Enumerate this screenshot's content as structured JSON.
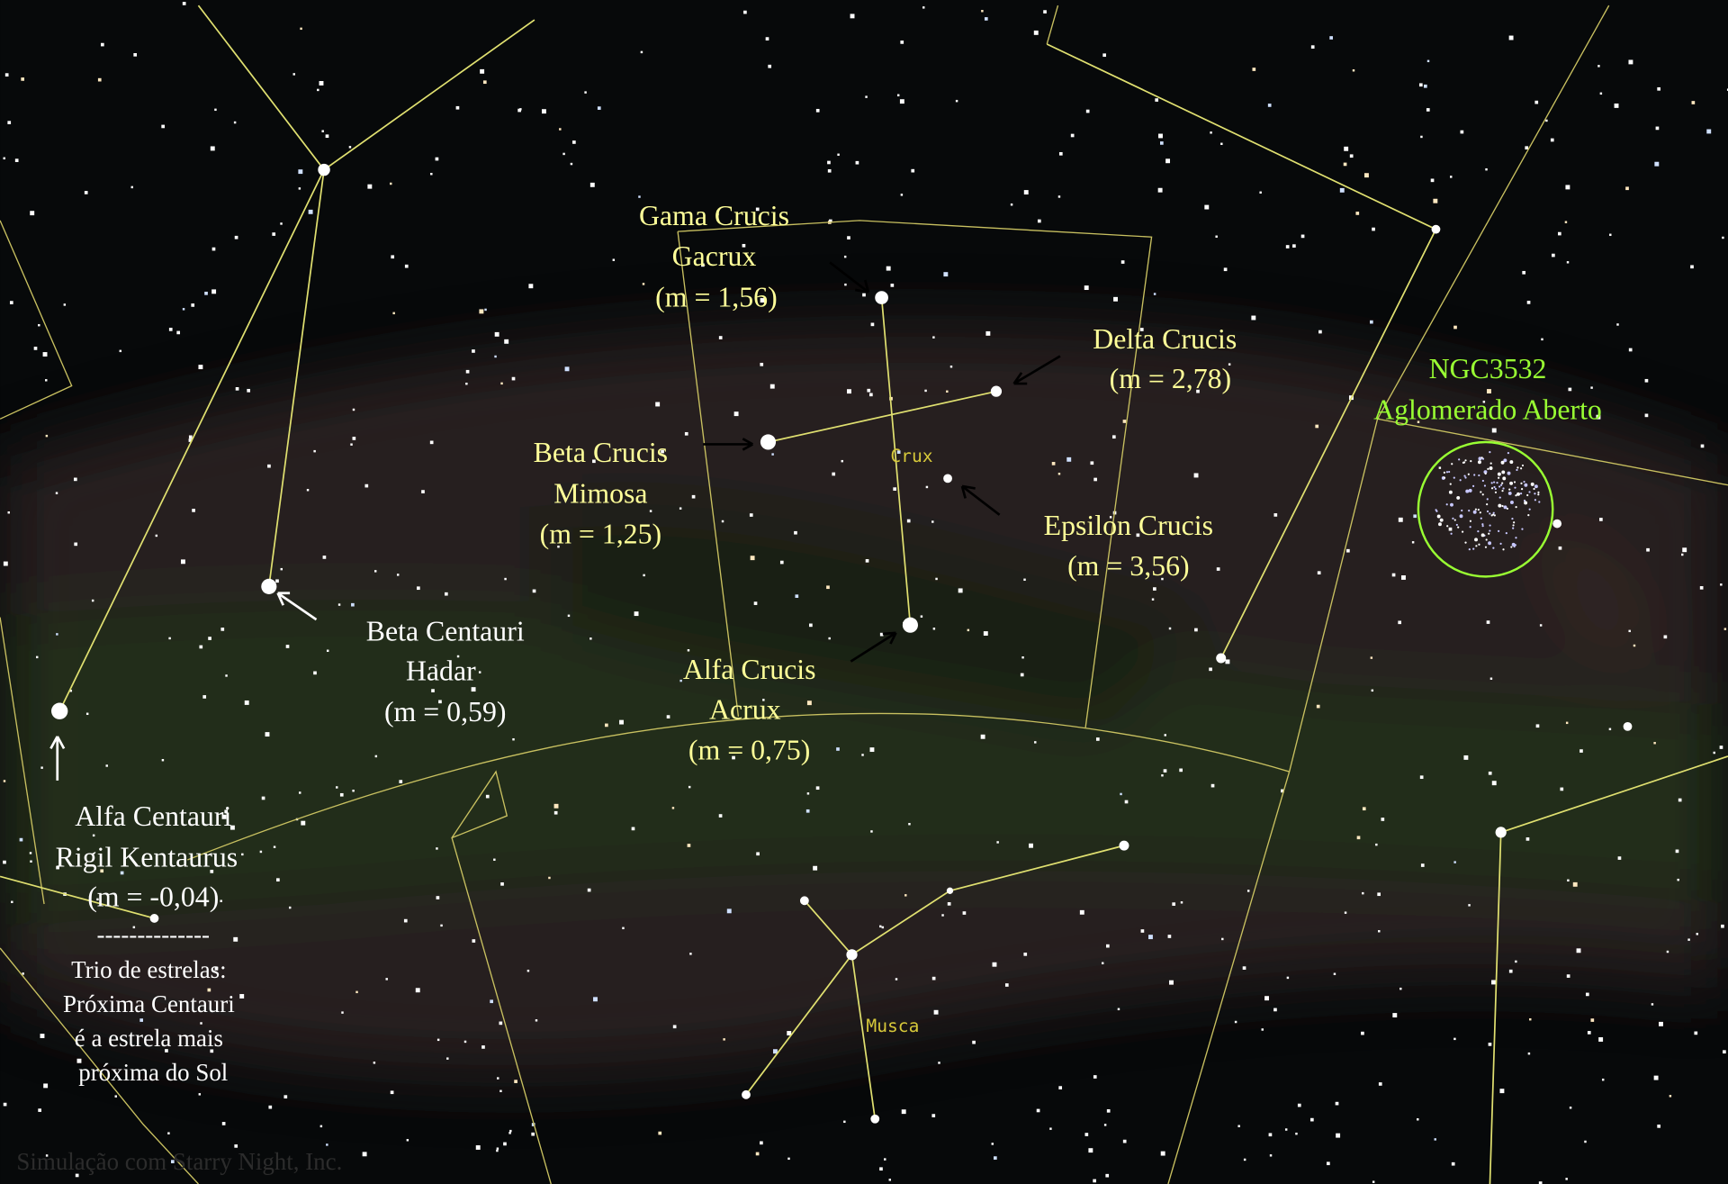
{
  "labels": [
    {
      "lines": [
        "Gama Crucis",
        "Gacrux",
        "(m = 1,56)"
      ]
    },
    {
      "lines": [
        "Delta Crucis",
        "(m = 2,78)"
      ]
    },
    {
      "lines": [
        "NGC3532",
        "Aglomerado Aberto"
      ]
    },
    {
      "lines": [
        "Beta Crucis",
        "Mimosa",
        "(m = 1,25)"
      ]
    },
    {
      "lines": [
        "Epsilon Crucis",
        "(m = 3,56)"
      ]
    },
    {
      "lines": [
        "Beta Centauri",
        "Hadar",
        "(m = 0,59)"
      ]
    },
    {
      "lines": [
        "Alfa Crucis",
        "Acrux",
        "(m = 0,75)"
      ]
    },
    {
      "lines": [
        "Alfa Centauri",
        "Rigil Kentaurus",
        "(m = -0,04)"
      ]
    }
  ],
  "separator": "--------------",
  "note": [
    "Trio de estrelas:",
    "Próxima Centauri",
    "é a estrela mais",
    "próxima do Sol"
  ],
  "constellations": [
    "Crux",
    "Musca"
  ],
  "credit": "Simulação com Starry Night, Inc."
}
